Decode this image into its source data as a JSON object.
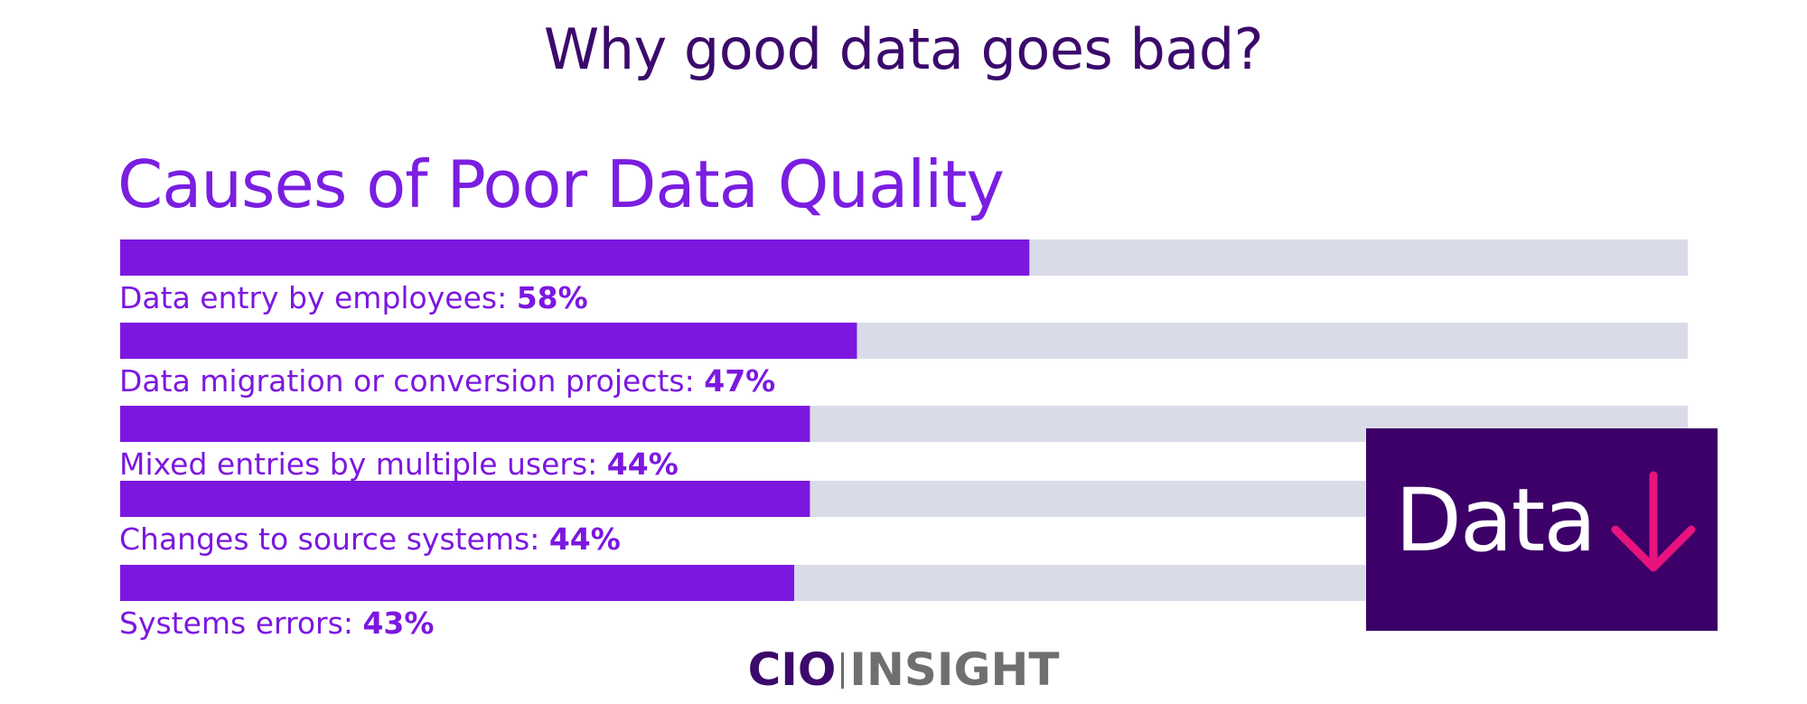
{
  "headline": "Why good data goes bad?",
  "chart_data": {
    "type": "bar",
    "orientation": "horizontal",
    "title": "Causes of Poor Data Quality",
    "categories": [
      "Data entry by employees:",
      "Data migration or conversion projects:",
      "Mixed entries by multiple users:",
      "Changes to source systems:",
      "Systems errors:"
    ],
    "value_labels": [
      "58%",
      "47%",
      "44%",
      "44%",
      "43%"
    ],
    "values": [
      58,
      47,
      44,
      44,
      43
    ],
    "unit": "%",
    "xlim": [
      0,
      100
    ],
    "grid": false,
    "legend": "none",
    "colors": {
      "bar": "#7c17e0",
      "track": "#d9dbe9",
      "label": "#7c17e0"
    }
  },
  "badge": {
    "text": "Data",
    "icon": "arrow-down-icon",
    "background": "#3c0068",
    "arrow_color": "#e8137f"
  },
  "logo": {
    "part1": "CIO",
    "part2": "INSIGHT"
  },
  "colors": {
    "headline": "#3b0a6b",
    "accent": "#7a1ee0"
  }
}
